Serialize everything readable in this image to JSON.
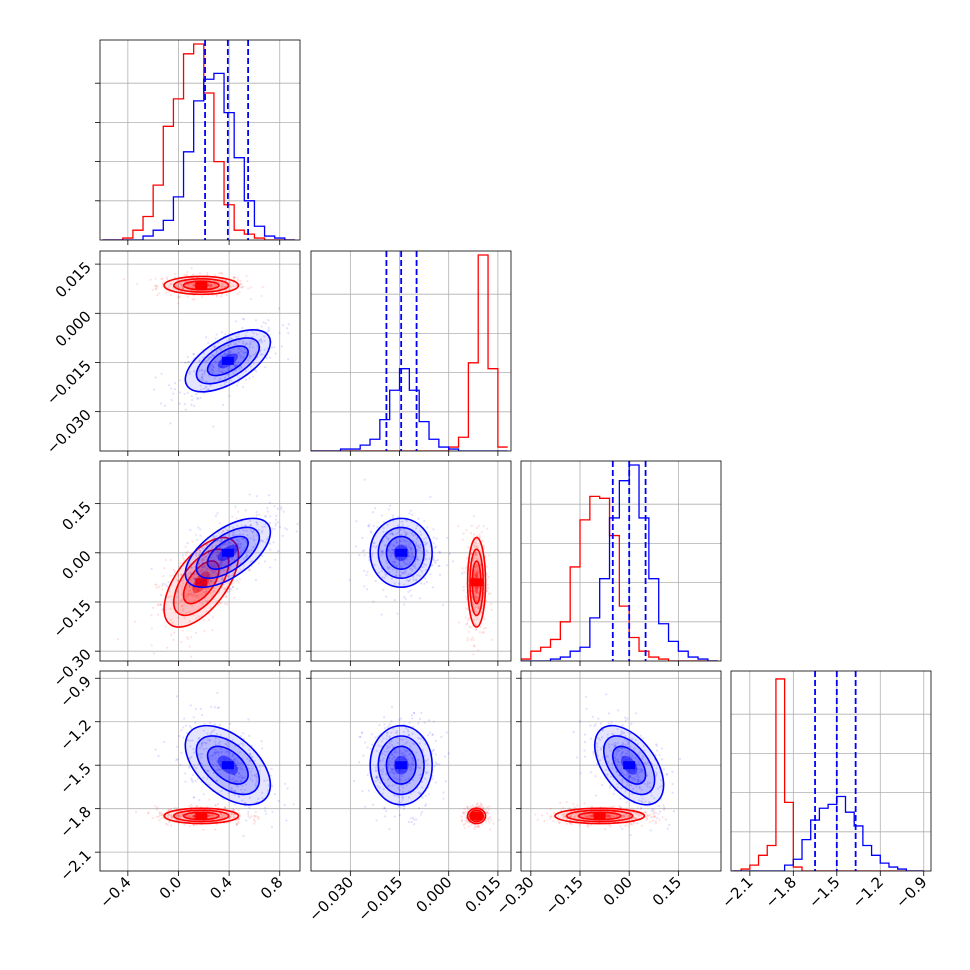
{
  "chart_data": {
    "type": "corner",
    "grid": true,
    "parameters": [
      {
        "index": 0,
        "range": [
          -0.62,
          0.96
        ],
        "ticks": [
          -0.4,
          0.0,
          0.4,
          0.8
        ],
        "tick_labels": [
          "−0.4",
          "0.0",
          "0.4",
          "0.8"
        ]
      },
      {
        "index": 1,
        "range": [
          -0.042,
          0.019
        ],
        "ticks": [
          -0.03,
          -0.015,
          0.0,
          0.015
        ],
        "tick_labels": [
          "−0.030",
          "−0.015",
          "0.000",
          "0.015"
        ]
      },
      {
        "index": 2,
        "range": [
          -0.33,
          0.28
        ],
        "ticks": [
          -0.3,
          -0.15,
          0.0,
          0.15
        ],
        "tick_labels": [
          "−0.30",
          "−0.15",
          "0.00",
          "0.15"
        ]
      },
      {
        "index": 3,
        "range": [
          -2.23,
          -0.85
        ],
        "ticks": [
          -2.1,
          -1.8,
          -1.5,
          -1.2,
          -0.9
        ],
        "tick_labels": [
          "−2.1",
          "−1.8",
          "−1.5",
          "−1.2",
          "−0.9"
        ]
      }
    ],
    "series": [
      {
        "color": "#ff0000",
        "means": [
          0.18,
          0.0085,
          -0.09,
          -1.85
        ],
        "sigmas": [
          0.14,
          0.0013,
          0.065,
          0.025
        ],
        "quantiles": []
      },
      {
        "color": "#0000ff",
        "means": [
          0.39,
          -0.0145,
          0.0,
          -1.5
        ],
        "sigmas": [
          0.16,
          0.0045,
          0.05,
          0.13
        ],
        "quantiles": [
          [
            0.21,
            0.39,
            0.55
          ],
          [
            -0.019,
            -0.0145,
            -0.0098
          ],
          [
            -0.05,
            0.0,
            0.05
          ],
          [
            -1.65,
            -1.5,
            -1.37
          ]
        ]
      }
    ],
    "correlations": [
      {
        "pair": [
          1,
          0
        ],
        "red": 0.0,
        "blue": 0.6
      },
      {
        "pair": [
          2,
          0
        ],
        "red": 0.6,
        "blue": 0.6
      },
      {
        "pair": [
          2,
          1
        ],
        "red": 0.0,
        "blue": 0.0
      },
      {
        "pair": [
          3,
          0
        ],
        "red": 0.0,
        "blue": -0.5
      },
      {
        "pair": [
          3,
          1
        ],
        "red": 0.0,
        "blue": 0.0
      },
      {
        "pair": [
          3,
          2
        ],
        "red": 0.0,
        "blue": -0.5
      }
    ],
    "histograms": [
      {
        "param": 0,
        "bin_edges": [
          -0.6,
          -0.52,
          -0.44,
          -0.36,
          -0.28,
          -0.2,
          -0.12,
          -0.04,
          0.04,
          0.12,
          0.2,
          0.28,
          0.36,
          0.44,
          0.52,
          0.6,
          0.68,
          0.76,
          0.84,
          0.92
        ],
        "red": [
          0.0,
          0.0,
          0.01,
          0.05,
          0.12,
          0.28,
          0.58,
          0.72,
          0.95,
          1.0,
          0.75,
          0.4,
          0.18,
          0.05,
          0.03,
          0.01,
          0.0,
          0.0,
          0.0
        ],
        "blue": [
          0.0,
          0.0,
          0.0,
          0.0,
          0.02,
          0.05,
          0.1,
          0.22,
          0.45,
          0.71,
          0.82,
          0.85,
          0.65,
          0.42,
          0.2,
          0.07,
          0.02,
          0.01,
          0.0
        ]
      },
      {
        "param": 1,
        "bin_edges": [
          -0.042,
          -0.039,
          -0.036,
          -0.033,
          -0.03,
          -0.027,
          -0.024,
          -0.021,
          -0.018,
          -0.015,
          -0.012,
          -0.009,
          -0.006,
          -0.003,
          0.0,
          0.003,
          0.006,
          0.009,
          0.012,
          0.015,
          0.018
        ],
        "red": [
          0.0,
          0.0,
          0.0,
          0.0,
          0.0,
          0.0,
          0.0,
          0.0,
          0.0,
          0.0,
          0.0,
          0.0,
          0.0,
          0.0,
          0.02,
          0.07,
          0.45,
          1.0,
          0.42,
          0.02
        ],
        "blue": [
          0.0,
          0.0,
          0.0,
          0.01,
          0.01,
          0.03,
          0.06,
          0.16,
          0.31,
          0.42,
          0.31,
          0.15,
          0.06,
          0.02,
          0.01,
          0.0,
          0.0,
          0.0,
          0.0,
          0.0
        ]
      },
      {
        "param": 2,
        "bin_edges": [
          -0.33,
          -0.3,
          -0.27,
          -0.24,
          -0.21,
          -0.18,
          -0.15,
          -0.12,
          -0.09,
          -0.06,
          -0.03,
          0.0,
          0.03,
          0.06,
          0.09,
          0.12,
          0.15,
          0.18,
          0.21,
          0.24,
          0.27
        ],
        "red": [
          0.01,
          0.05,
          0.07,
          0.11,
          0.2,
          0.48,
          0.72,
          0.84,
          0.83,
          0.64,
          0.28,
          0.12,
          0.05,
          0.02,
          0.01,
          0.0,
          0.0,
          0.0,
          0.0,
          0.0
        ],
        "blue": [
          0.0,
          0.0,
          0.0,
          0.01,
          0.02,
          0.05,
          0.07,
          0.22,
          0.42,
          0.73,
          0.92,
          1.0,
          0.73,
          0.42,
          0.19,
          0.1,
          0.05,
          0.02,
          0.01,
          0.0
        ]
      },
      {
        "param": 3,
        "bin_edges": [
          -2.22,
          -2.16,
          -2.1,
          -2.04,
          -1.98,
          -1.92,
          -1.86,
          -1.8,
          -1.74,
          -1.68,
          -1.62,
          -1.56,
          -1.5,
          -1.44,
          -1.38,
          -1.32,
          -1.26,
          -1.2,
          -1.14,
          -1.08,
          -1.02,
          -0.96,
          -0.9
        ],
        "red": [
          0.0,
          0.01,
          0.03,
          0.08,
          0.13,
          0.98,
          0.35,
          0.02,
          0.0,
          0.0,
          0.0,
          0.0,
          0.0,
          0.0,
          0.0,
          0.0,
          0.0,
          0.0,
          0.0,
          0.0,
          0.0,
          0.0
        ],
        "blue": [
          0.0,
          0.0,
          0.0,
          0.0,
          0.0,
          0.0,
          0.03,
          0.06,
          0.16,
          0.26,
          0.32,
          0.34,
          0.38,
          0.3,
          0.23,
          0.13,
          0.08,
          0.04,
          0.02,
          0.01,
          0.0,
          0.0
        ]
      }
    ]
  }
}
